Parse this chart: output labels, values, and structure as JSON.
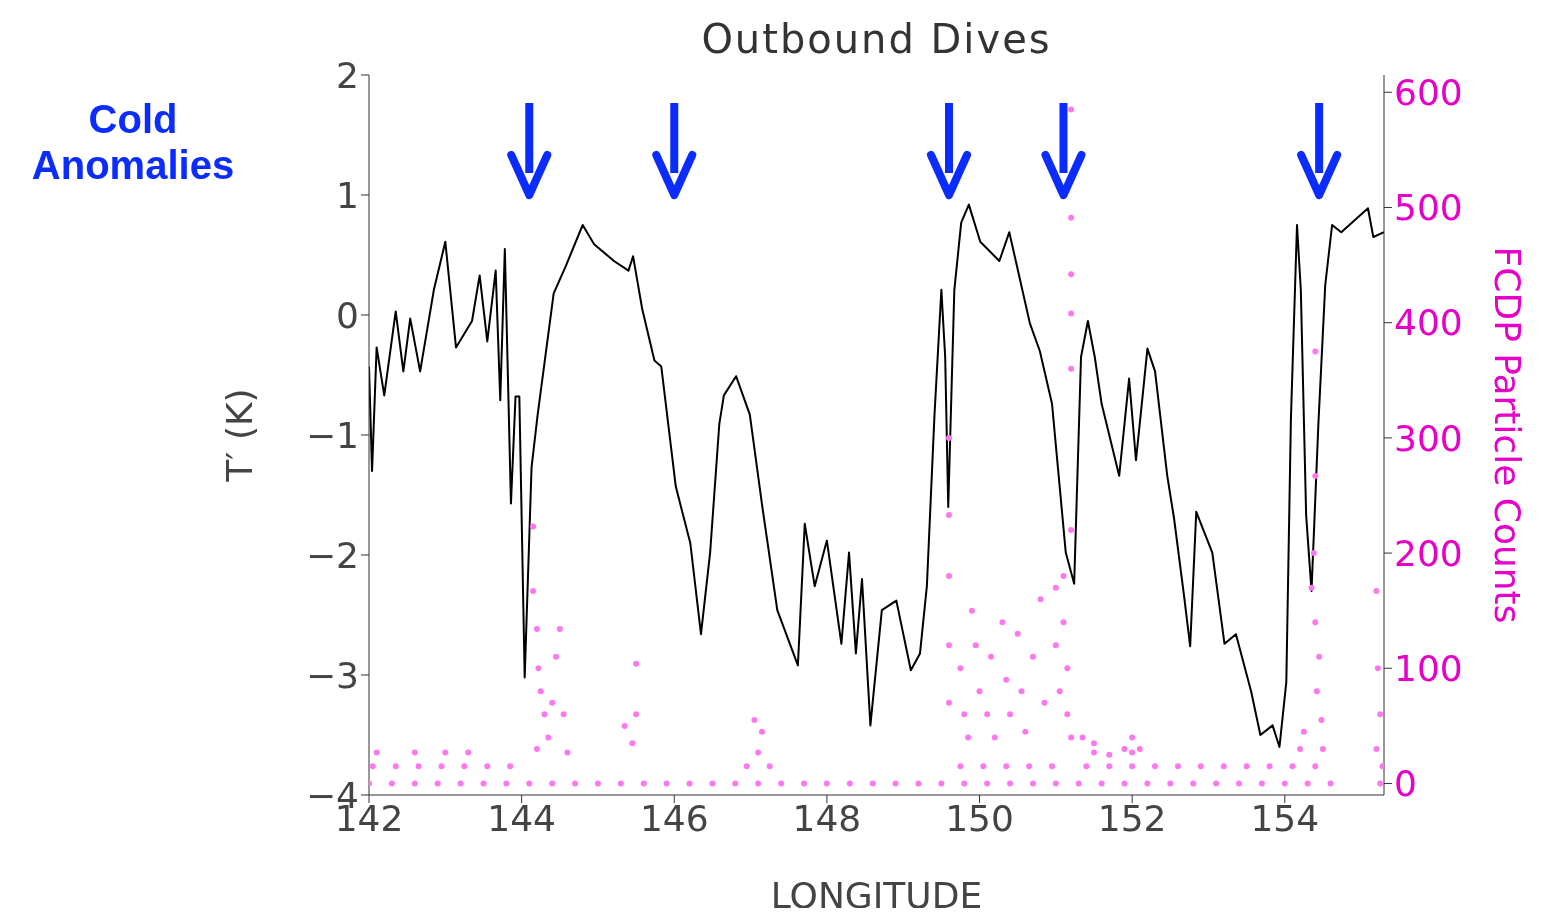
{
  "chart_data": {
    "type": "line",
    "title": "Outbound Dives",
    "xlabel": "LONGITUDE",
    "ylabel": "T′ (K)",
    "y2label": "FCDP Particle Counts",
    "annotations": [
      "Cold Anomalies"
    ],
    "xlim": [
      142,
      155.3
    ],
    "xticks": [
      142,
      144,
      146,
      148,
      150,
      152,
      154
    ],
    "ylim": [
      -4,
      2
    ],
    "yticks": [
      {
        "value": -4,
        "label": "−4"
      },
      {
        "value": -3,
        "label": "−3"
      },
      {
        "value": -2,
        "label": "−2"
      },
      {
        "value": -1,
        "label": "−1"
      },
      0,
      1,
      2
    ],
    "y2lim": [
      -10,
      615
    ],
    "y2ticks": [
      0,
      100,
      200,
      300,
      400,
      500,
      600
    ],
    "series": [
      {
        "color": "#000000",
        "x": [
          142.0,
          142.04,
          142.1,
          142.2,
          142.35,
          142.45,
          142.54,
          142.67,
          142.85,
          143.0,
          143.14,
          143.35,
          143.45,
          143.55,
          143.66,
          143.72,
          143.78,
          143.86,
          143.92,
          143.97,
          144.04,
          144.13,
          144.21,
          144.42,
          144.58,
          144.8,
          144.95,
          145.21,
          145.4,
          145.46,
          145.58,
          145.74,
          145.83,
          146.02,
          146.21,
          146.35,
          146.47,
          146.59,
          146.65,
          146.81,
          146.99,
          147.15,
          147.35,
          147.62,
          147.71,
          147.84,
          148.0,
          148.19,
          148.29,
          148.38,
          148.46,
          148.57,
          148.72,
          148.91,
          149.1,
          149.22,
          149.31,
          149.41,
          149.5,
          149.55,
          149.59,
          149.67,
          149.76,
          149.86,
          150.01,
          150.26,
          150.39,
          150.66,
          150.79,
          150.95,
          151.13,
          151.24,
          151.33,
          151.42,
          151.51,
          151.6,
          151.83,
          151.96,
          152.05,
          152.12,
          152.2,
          152.3,
          152.46,
          152.55,
          152.68,
          152.76,
          152.84,
          153.05,
          153.21,
          153.36,
          153.56,
          153.68,
          153.84,
          153.93,
          154.02,
          154.08,
          154.16,
          154.21,
          154.28,
          154.35,
          154.44,
          154.53,
          154.62,
          154.74,
          155.09,
          155.16,
          155.3
        ],
        "values": [
          -0.43,
          -1.3,
          -0.27,
          -0.67,
          0.03,
          -0.47,
          -0.03,
          -0.47,
          0.21,
          0.61,
          -0.27,
          -0.05,
          0.33,
          -0.22,
          0.37,
          -0.71,
          0.55,
          -1.57,
          -0.68,
          -0.68,
          -3.02,
          -1.27,
          -0.83,
          0.18,
          0.41,
          0.75,
          0.59,
          0.45,
          0.37,
          0.49,
          0.05,
          -0.38,
          -0.43,
          -1.43,
          -1.9,
          -2.66,
          -1.98,
          -0.91,
          -0.67,
          -0.51,
          -0.83,
          -1.58,
          -2.46,
          -2.92,
          -1.74,
          -2.26,
          -1.88,
          -2.74,
          -1.98,
          -2.82,
          -2.2,
          -3.42,
          -2.46,
          -2.38,
          -2.96,
          -2.82,
          -2.26,
          -0.83,
          0.21,
          -0.35,
          -1.6,
          0.21,
          0.77,
          0.92,
          0.61,
          0.45,
          0.69,
          -0.07,
          -0.3,
          -0.74,
          -1.98,
          -2.24,
          -0.35,
          -0.05,
          -0.35,
          -0.74,
          -1.34,
          -0.53,
          -1.21,
          -0.78,
          -0.28,
          -0.47,
          -1.34,
          -1.7,
          -2.34,
          -2.76,
          -1.64,
          -1.98,
          -2.74,
          -2.66,
          -3.14,
          -3.5,
          -3.42,
          -3.6,
          -3.06,
          -0.87,
          0.75,
          0.21,
          -1.67,
          -2.3,
          -0.91,
          0.25,
          0.75,
          0.69,
          0.89,
          0.65,
          0.69
        ]
      },
      {
        "type": "scatter",
        "axis": "y2",
        "color": "#ff77ee",
        "x": [
          142.0,
          142.3,
          142.6,
          142.9,
          143.2,
          143.5,
          143.8,
          144.1,
          144.4,
          144.7,
          145.0,
          145.3,
          145.6,
          145.9,
          146.2,
          146.5,
          146.8,
          147.1,
          147.4,
          147.7,
          148.0,
          148.3,
          148.6,
          148.9,
          149.2,
          149.5,
          149.8,
          150.1,
          150.4,
          150.7,
          151.0,
          151.3,
          151.6,
          151.9,
          152.2,
          152.5,
          152.8,
          153.1,
          153.4,
          153.7,
          154.0,
          154.3,
          154.6,
          155.25,
          142.05,
          142.35,
          142.65,
          142.95,
          143.25,
          143.55,
          143.85,
          146.95,
          147.25,
          149.75,
          150.05,
          150.35,
          150.65,
          150.95,
          151.4,
          151.7,
          152.0,
          152.3,
          152.6,
          152.9,
          153.2,
          153.5,
          153.8,
          154.1,
          154.4,
          142.1,
          142.6,
          143.0,
          143.3,
          144.6,
          147.1,
          151.5,
          152.0,
          144.15,
          144.15,
          144.2,
          144.22,
          144.25,
          144.3,
          144.35,
          144.4,
          144.45,
          144.5,
          144.55,
          144.2,
          145.5,
          145.5,
          145.45,
          145.35,
          147.05,
          147.15,
          149.6,
          149.6,
          149.6,
          149.6,
          149.6,
          149.75,
          149.8,
          149.85,
          149.9,
          149.95,
          150.0,
          150.1,
          150.15,
          150.2,
          150.3,
          150.35,
          150.4,
          150.5,
          150.55,
          150.6,
          150.7,
          150.8,
          150.85,
          151.0,
          151.0,
          151.05,
          151.1,
          151.1,
          151.15,
          151.15,
          151.2,
          151.2,
          151.2,
          151.2,
          151.2,
          151.2,
          151.2,
          151.35,
          151.5,
          151.7,
          151.9,
          152.0,
          152.1,
          154.4,
          154.4,
          154.38,
          154.35,
          154.4,
          154.45,
          154.42,
          154.48,
          154.5,
          154.2,
          154.25,
          155.2,
          155.22,
          155.25,
          155.2,
          155.28
        ],
        "values": [
          0,
          0,
          0,
          0,
          0,
          0,
          0,
          0,
          0,
          0,
          0,
          0,
          0,
          0,
          0,
          0,
          0,
          0,
          0,
          0,
          0,
          0,
          0,
          0,
          0,
          0,
          0,
          0,
          0,
          0,
          0,
          0,
          0,
          0,
          0,
          0,
          0,
          0,
          0,
          0,
          0,
          0,
          0,
          0,
          15,
          15,
          15,
          15,
          15,
          15,
          15,
          15,
          15,
          15,
          15,
          15,
          15,
          15,
          15,
          15,
          15,
          15,
          15,
          15,
          15,
          15,
          15,
          15,
          15,
          27,
          27,
          27,
          27,
          27,
          27,
          27,
          27,
          223,
          167,
          134,
          100,
          80,
          60,
          40,
          70,
          110,
          134,
          60,
          30,
          104,
          60,
          35,
          50,
          55,
          45,
          300,
          233,
          180,
          120,
          70,
          100,
          60,
          40,
          150,
          120,
          80,
          60,
          110,
          40,
          140,
          90,
          60,
          130,
          80,
          45,
          110,
          160,
          70,
          170,
          120,
          80,
          180,
          140,
          100,
          60,
          40,
          585,
          491,
          442,
          408,
          360,
          220,
          40,
          35,
          25,
          30,
          40,
          30,
          375,
          267,
          200,
          170,
          140,
          110,
          80,
          55,
          30,
          30,
          45,
          167,
          100,
          60,
          30,
          15
        ]
      }
    ]
  }
}
